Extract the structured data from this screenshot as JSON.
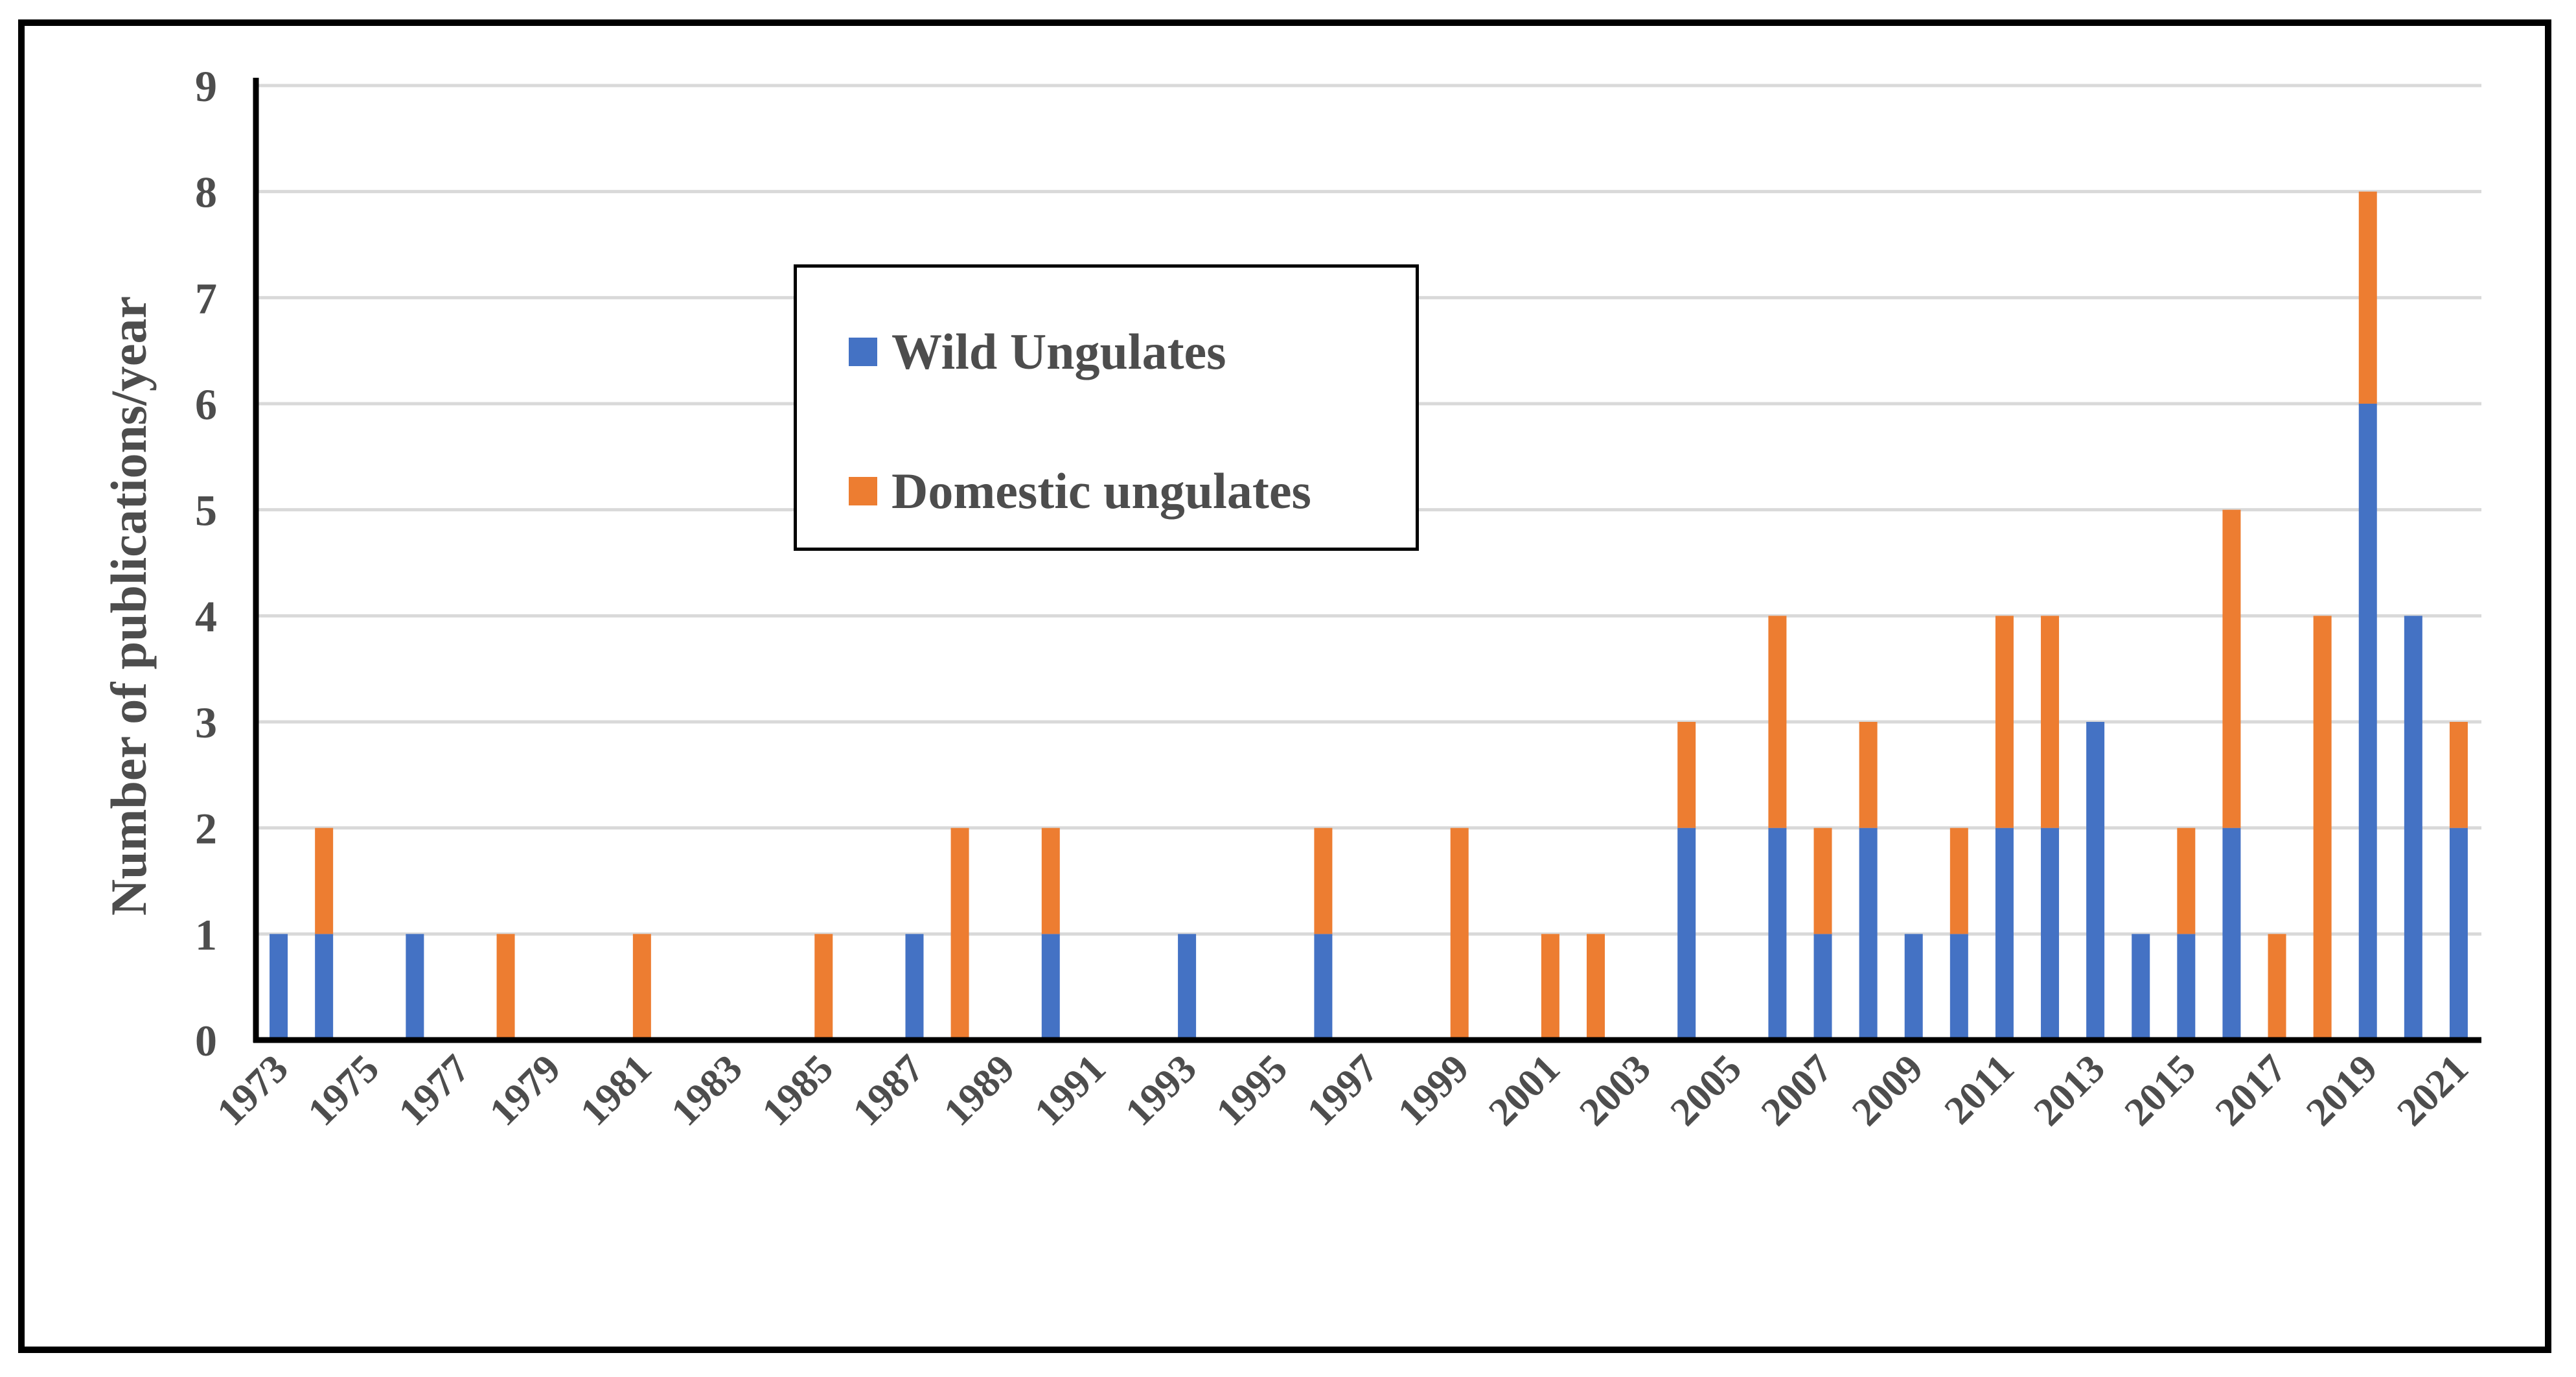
{
  "chart_data": {
    "type": "bar",
    "stacked": true,
    "ylabel": "Number of publications/year",
    "xlabel": "",
    "ylim": [
      0,
      9
    ],
    "yticks": [
      0,
      1,
      2,
      3,
      4,
      5,
      6,
      7,
      8,
      9
    ],
    "grid": true,
    "legend_position": "upper-left-center",
    "categories": [
      1973,
      1974,
      1975,
      1976,
      1977,
      1978,
      1979,
      1980,
      1981,
      1982,
      1983,
      1984,
      1985,
      1986,
      1987,
      1988,
      1989,
      1990,
      1991,
      1992,
      1993,
      1994,
      1995,
      1996,
      1997,
      1998,
      1999,
      2000,
      2001,
      2002,
      2003,
      2004,
      2005,
      2006,
      2007,
      2008,
      2009,
      2010,
      2011,
      2012,
      2013,
      2014,
      2015,
      2016,
      2017,
      2018,
      2019,
      2020,
      2021
    ],
    "xtick_labels": [
      "1973",
      "1975",
      "1977",
      "1979",
      "1981",
      "1983",
      "1985",
      "1987",
      "1989",
      "1991",
      "1993",
      "1995",
      "1997",
      "1999",
      "2001",
      "2003",
      "2005",
      "2007",
      "2009",
      "2011",
      "2013",
      "2015",
      "2017",
      "2019",
      "2021"
    ],
    "series": [
      {
        "name": "Wild Ungulates",
        "color": "#4472c4",
        "values": [
          1,
          1,
          0,
          1,
          0,
          0,
          0,
          0,
          0,
          0,
          0,
          0,
          0,
          0,
          1,
          0,
          0,
          1,
          0,
          0,
          1,
          0,
          0,
          1,
          0,
          0,
          0,
          0,
          0,
          0,
          0,
          2,
          0,
          2,
          1,
          2,
          1,
          1,
          2,
          2,
          3,
          1,
          1,
          2,
          0,
          0,
          6,
          4,
          2
        ]
      },
      {
        "name": "Domestic ungulates",
        "color": "#ed7d31",
        "values": [
          0,
          1,
          0,
          0,
          0,
          1,
          0,
          0,
          1,
          0,
          0,
          0,
          1,
          0,
          0,
          2,
          0,
          1,
          0,
          0,
          0,
          0,
          0,
          1,
          0,
          0,
          2,
          0,
          1,
          1,
          0,
          1,
          0,
          2,
          1,
          1,
          0,
          1,
          2,
          2,
          0,
          0,
          1,
          3,
          1,
          4,
          2,
          0,
          1
        ]
      }
    ]
  }
}
